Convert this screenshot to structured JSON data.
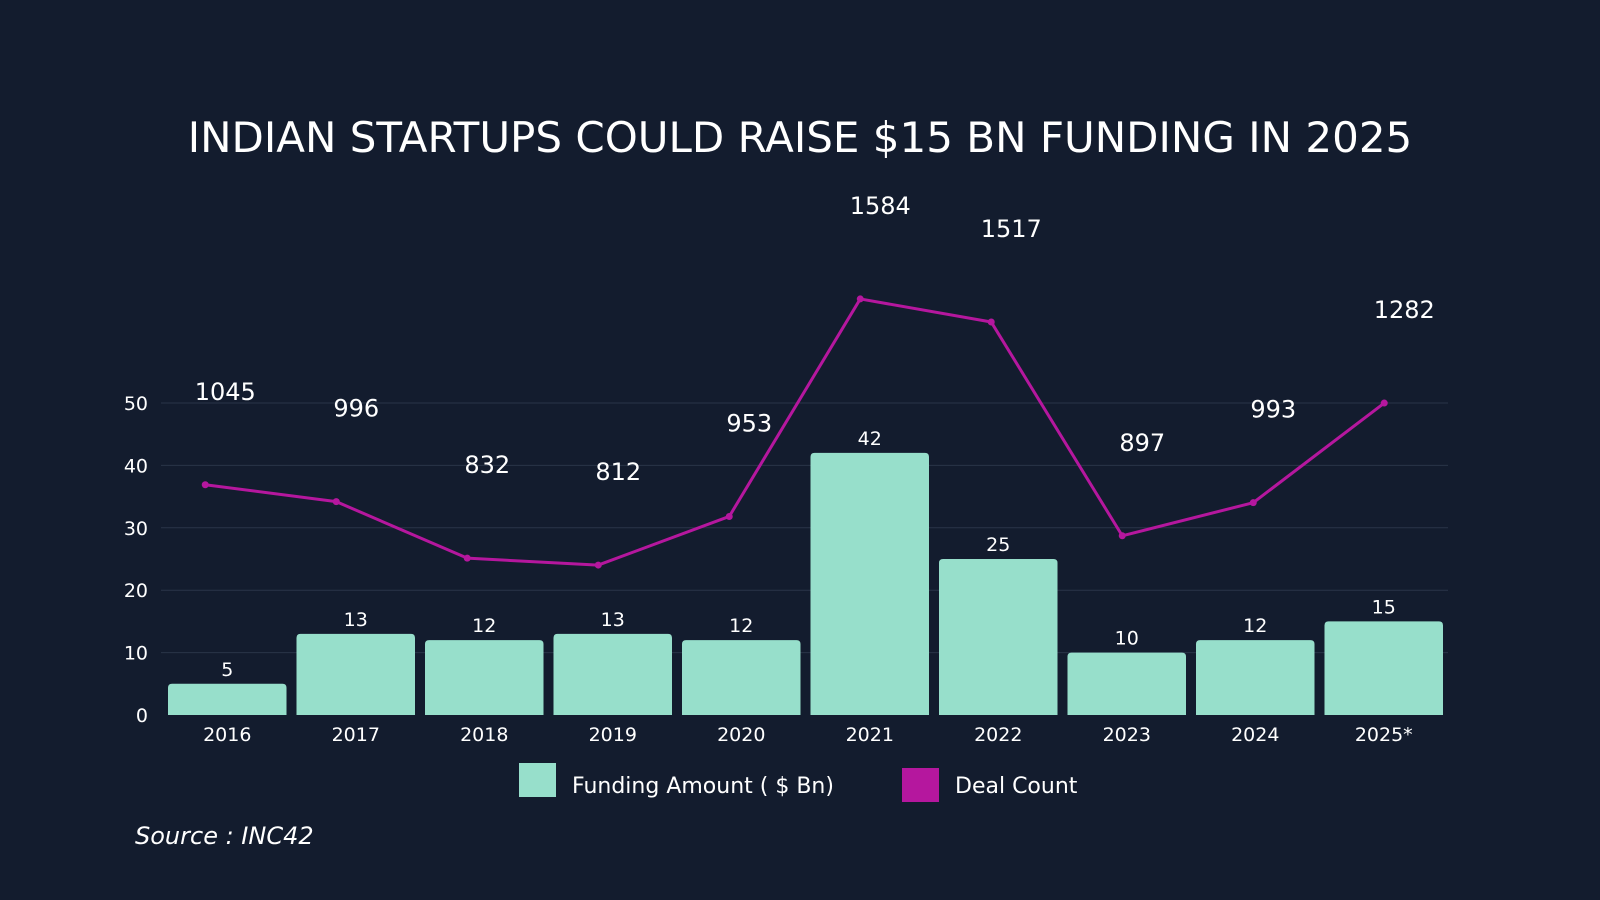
{
  "chart_data": {
    "type": "bar",
    "title": "INDIAN STARTUPS COULD RAISE $15 BN FUNDING IN 2025",
    "categories": [
      "2016",
      "2017",
      "2018",
      "2019",
      "2020",
      "2021",
      "2022",
      "2023",
      "2024",
      "2025*"
    ],
    "ylim": [
      0,
      50
    ],
    "yticks": [
      0,
      10,
      20,
      30,
      40,
      50
    ],
    "grid": true,
    "legend_position": "bottom",
    "series": [
      {
        "name": "Funding Amount ( $ Bn)",
        "type": "bar",
        "color": "#97dfcb",
        "values": [
          5,
          13,
          12,
          13,
          12,
          42,
          25,
          10,
          12,
          15
        ]
      },
      {
        "name": "Deal Count",
        "type": "line",
        "color": "#b5179e",
        "values": [
          1045,
          996,
          832,
          812,
          953,
          1584,
          1517,
          897,
          993,
          1282
        ]
      }
    ]
  },
  "source": "Source : INC42"
}
